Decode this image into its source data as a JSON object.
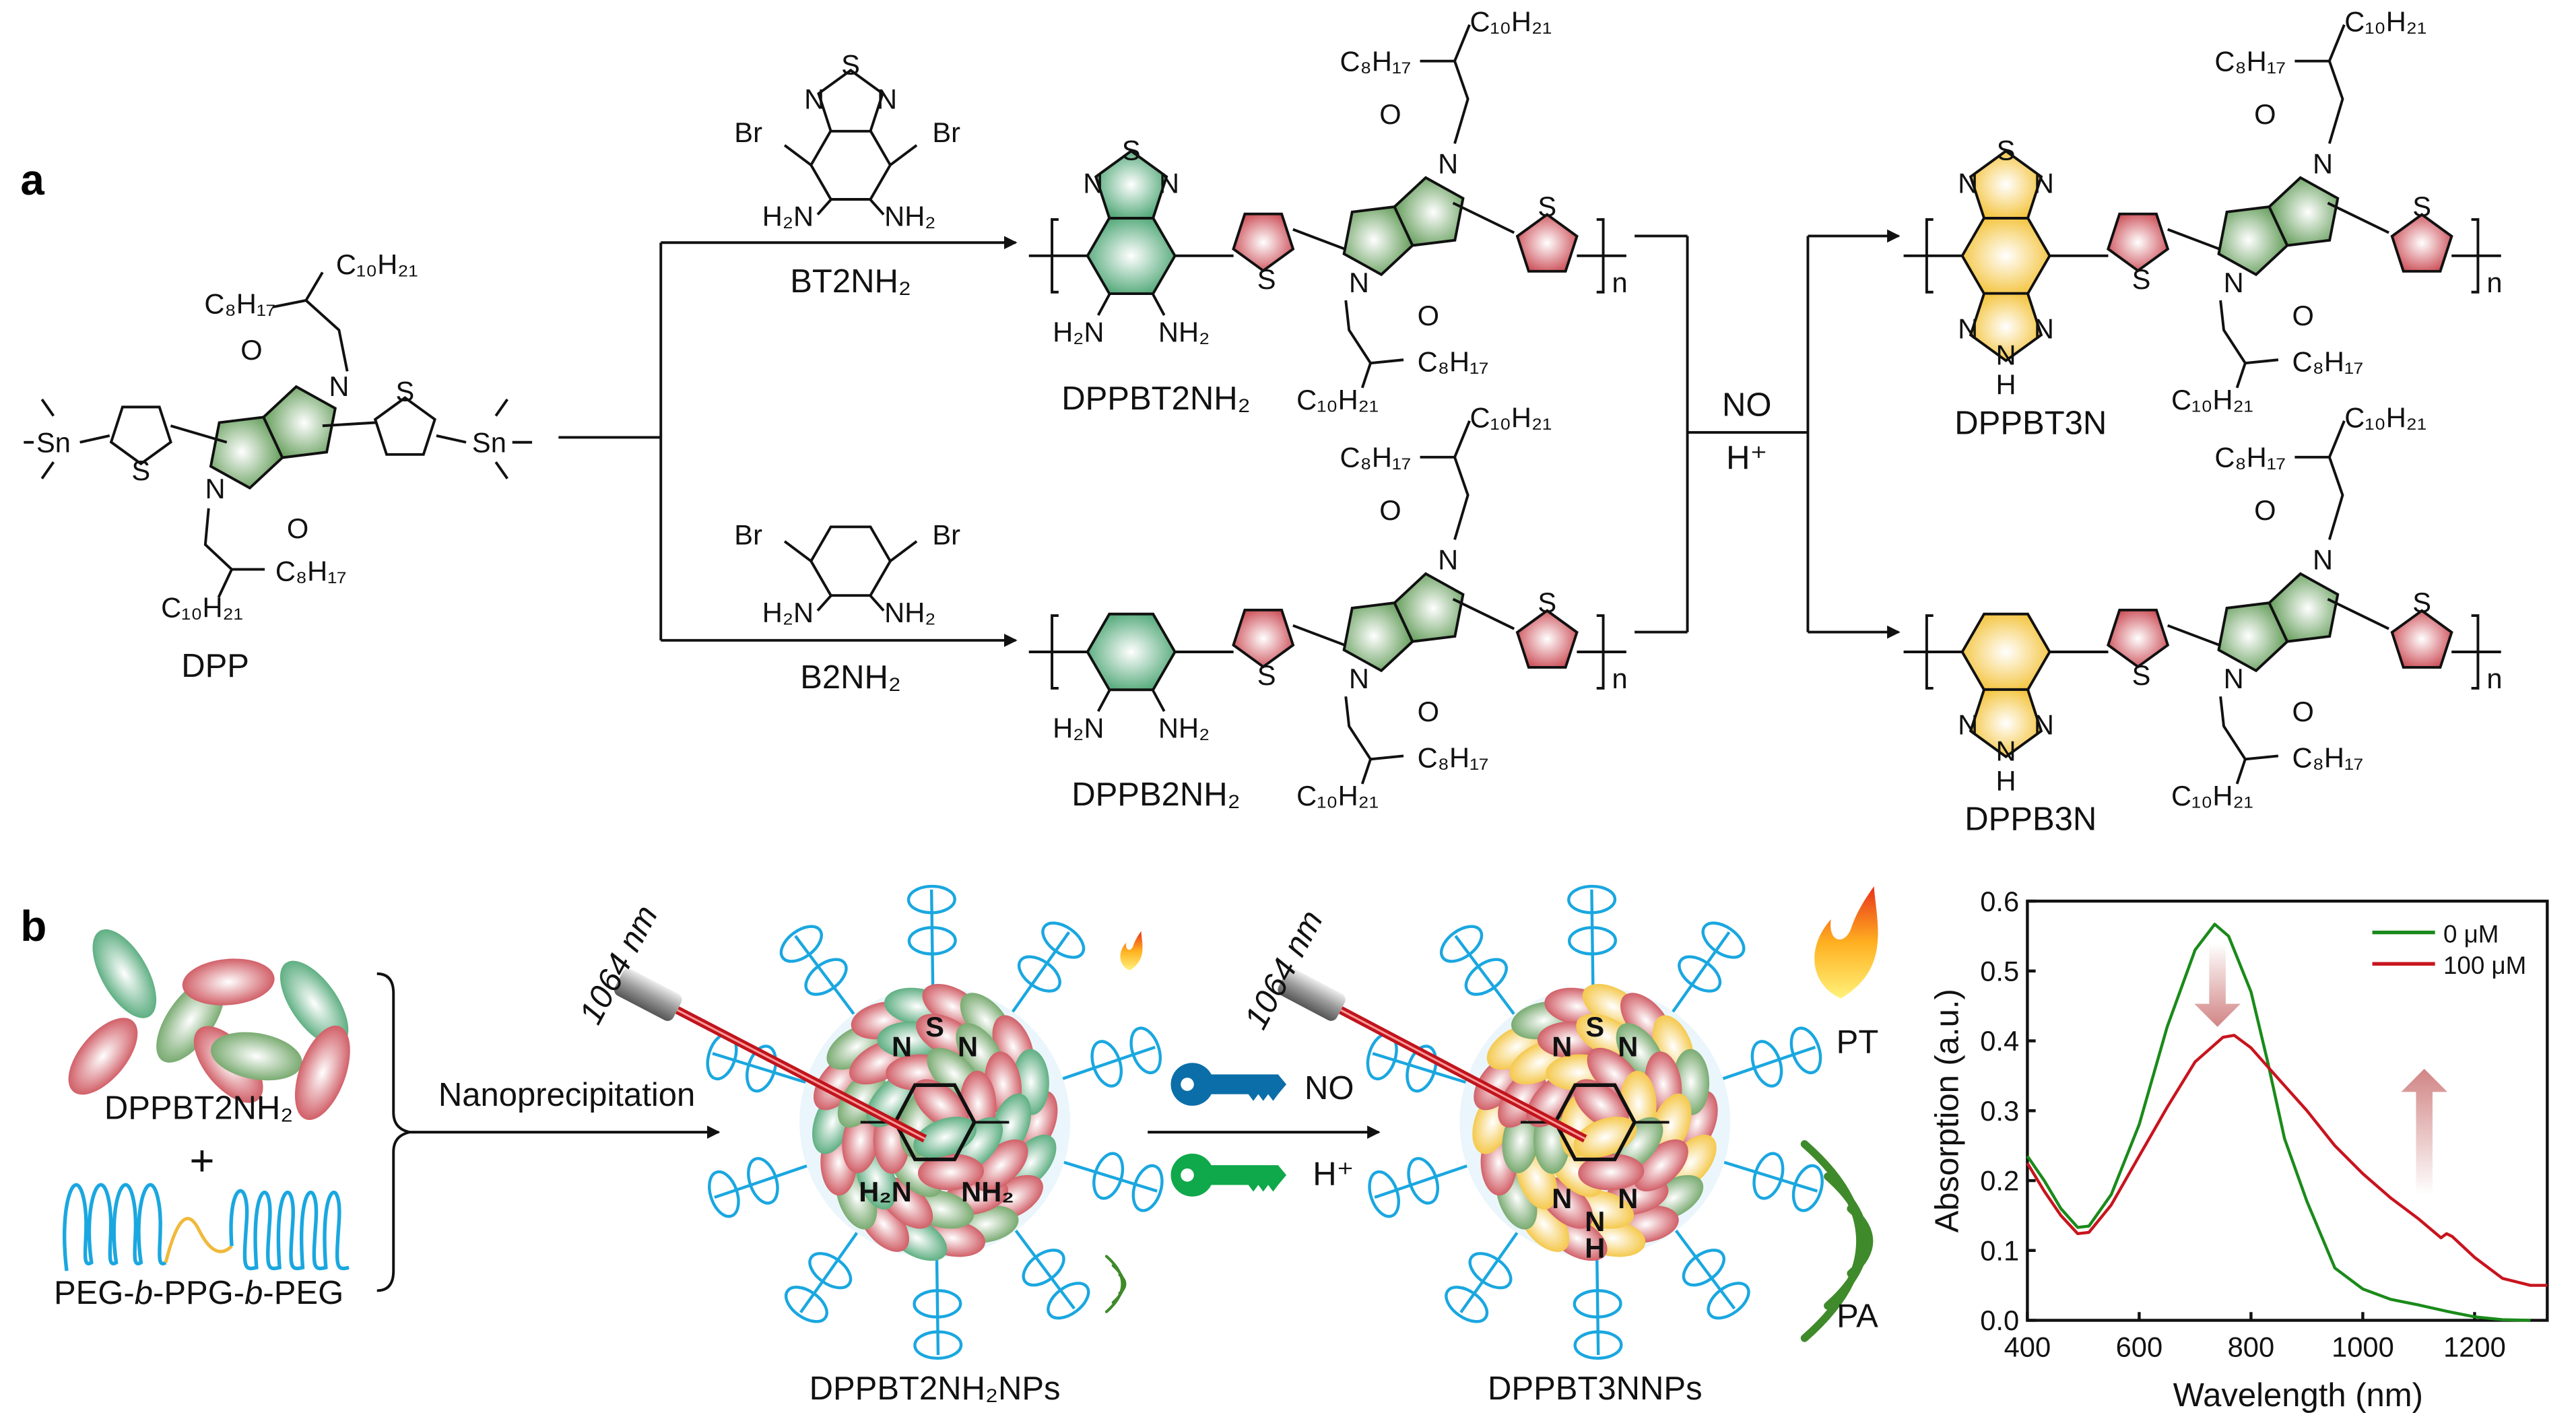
{
  "panel_a": {
    "label": "a",
    "monomer_dpp": {
      "name": "DPP",
      "sn": "Sn",
      "c10": "C₁₀H₂₁",
      "c8": "C₈H₁₇",
      "o": "O",
      "n": "N",
      "s": "S"
    },
    "reagent_top": {
      "name": "BT2NH₂",
      "br": "Br",
      "s": "S",
      "n": "N",
      "h2n": "H₂N",
      "nh2": "NH₂"
    },
    "reagent_bottom": {
      "name": "B2NH₂",
      "br": "Br",
      "h2n": "H₂N",
      "nh2": "NH₂"
    },
    "polymers": [
      {
        "name": "DPPBT2NH₂",
        "acceptor": "thiadiazole-diamine",
        "color": "#3fae7a"
      },
      {
        "name": "DPPB2NH₂",
        "acceptor": "benzene-diamine",
        "color": "#3fae7a"
      },
      {
        "name": "DPPBT3N",
        "acceptor": "thiadiazole-triazole",
        "color": "#f5c43a"
      },
      {
        "name": "DPPB3N",
        "acceptor": "benzotriazole",
        "color": "#f5c43a"
      }
    ],
    "atoms": {
      "s": "S",
      "n": "N",
      "o": "O",
      "h": "H",
      "h2n": "H₂N",
      "nh2": "NH₂",
      "c10": "C₁₀H₂₁",
      "c8": "C₈H₁₇",
      "repeat": "n"
    },
    "conditions": {
      "reagent": "NO",
      "acid": "H⁺"
    }
  },
  "panel_b": {
    "label": "b",
    "component_polymer": "DPPBT2NH₂",
    "plus": "+",
    "component_copolymer": "PEG-b-PPG-b-PEG",
    "copolymer_parts": [
      "PEG-",
      "b",
      "-PPG-",
      "b",
      "-PEG"
    ],
    "process": "Nanoprecipitation",
    "laser_1": "1064 nm",
    "laser_2": "1064 nm",
    "np_before": "DPPBT2NH₂NPs",
    "np_after": "DPPBT3NNPs",
    "key_no": "NO",
    "key_h": "H⁺",
    "np_before_atoms": {
      "s": "S",
      "n": "N",
      "h2n": "H₂N",
      "nh2": "NH₂"
    },
    "np_after_atoms": {
      "s": "S",
      "n": "N",
      "h": "H"
    },
    "pt": "PT",
    "pa": "PA",
    "colors": {
      "key_no": "#0b6ea8",
      "key_h": "#0fa84a",
      "peg": "#1aa7e0",
      "ppg": "#f0b93a"
    }
  },
  "chart_data": {
    "type": "line",
    "title": "",
    "xlabel": "Wavelength (nm)",
    "ylabel": "Absorption (a.u.)",
    "xlim": [
      400,
      1330
    ],
    "ylim": [
      0,
      0.6
    ],
    "xticks": [
      400,
      600,
      800,
      1000,
      1200
    ],
    "yticks": [
      "0.0",
      "0.1",
      "0.2",
      "0.3",
      "0.4",
      "0.5",
      "0.6"
    ],
    "grid": false,
    "legend_position": "top-right",
    "series": [
      {
        "name": "0 μM",
        "color": "#1a8a1a",
        "x": [
          400,
          430,
          460,
          490,
          510,
          550,
          600,
          650,
          700,
          735,
          760,
          800,
          830,
          860,
          900,
          950,
          1000,
          1050,
          1100,
          1150,
          1200,
          1250,
          1300
        ],
        "y": [
          0.235,
          0.2,
          0.16,
          0.133,
          0.135,
          0.18,
          0.28,
          0.42,
          0.53,
          0.567,
          0.55,
          0.47,
          0.37,
          0.26,
          0.17,
          0.075,
          0.045,
          0.03,
          0.022,
          0.013,
          0.005,
          0.001,
          0.0
        ]
      },
      {
        "name": "100 μM",
        "color": "#c8141e",
        "x": [
          400,
          430,
          460,
          490,
          510,
          550,
          600,
          650,
          700,
          750,
          770,
          800,
          850,
          900,
          950,
          1000,
          1050,
          1100,
          1140,
          1150,
          1160,
          1200,
          1250,
          1300,
          1330
        ],
        "y": [
          0.225,
          0.185,
          0.15,
          0.124,
          0.126,
          0.165,
          0.235,
          0.305,
          0.37,
          0.405,
          0.408,
          0.39,
          0.345,
          0.3,
          0.25,
          0.21,
          0.175,
          0.145,
          0.118,
          0.124,
          0.12,
          0.09,
          0.06,
          0.05,
          0.05
        ]
      }
    ],
    "annotations": [
      {
        "type": "arrow-down",
        "x": 740,
        "y_from": 0.54,
        "y_to": 0.42
      },
      {
        "type": "arrow-up",
        "x": 1110,
        "y_from": 0.18,
        "y_to": 0.36
      }
    ]
  }
}
